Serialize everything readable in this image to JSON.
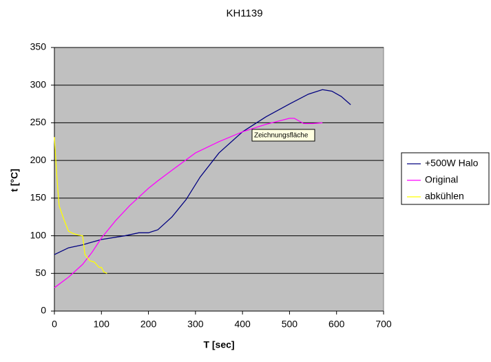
{
  "chart_data": {
    "type": "line",
    "title": "KH1139",
    "x_label": "T [sec]",
    "y_label": "t [°C]",
    "annotation": "Zeichnungsfläche",
    "xlim": [
      0,
      700
    ],
    "xticks": [
      0,
      100,
      200,
      300,
      400,
      500,
      600,
      700
    ],
    "ylim": [
      0,
      350
    ],
    "yticks": [
      0,
      50,
      100,
      150,
      200,
      250,
      300,
      350
    ],
    "grid": true,
    "legend": "right",
    "series": [
      {
        "name": "+500W Halo",
        "color": "#000080",
        "x": [
          0,
          30,
          60,
          100,
          150,
          180,
          200,
          220,
          250,
          280,
          310,
          350,
          400,
          450,
          500,
          540,
          570,
          590,
          610,
          630
        ],
        "values": [
          75,
          84,
          88,
          95,
          100,
          104,
          104,
          108,
          125,
          148,
          178,
          210,
          238,
          258,
          275,
          288,
          294,
          292,
          285,
          274
        ]
      },
      {
        "name": "Original",
        "color": "#ff00ff",
        "x": [
          0,
          30,
          60,
          80,
          100,
          130,
          160,
          200,
          220,
          250,
          300,
          350,
          400,
          450,
          500,
          510,
          530,
          550,
          570
        ],
        "values": [
          31,
          45,
          62,
          78,
          97,
          120,
          140,
          163,
          173,
          187,
          210,
          225,
          238,
          248,
          256,
          256,
          249,
          249,
          250
        ]
      },
      {
        "name": "abkühlen",
        "color": "#ffff00",
        "x": [
          0,
          5,
          10,
          20,
          30,
          40,
          50,
          60,
          65,
          75,
          85,
          95,
          100,
          105,
          112
        ],
        "values": [
          231,
          180,
          140,
          122,
          106,
          103,
          101,
          100,
          75,
          67,
          65,
          58,
          58,
          52,
          50
        ]
      }
    ]
  }
}
